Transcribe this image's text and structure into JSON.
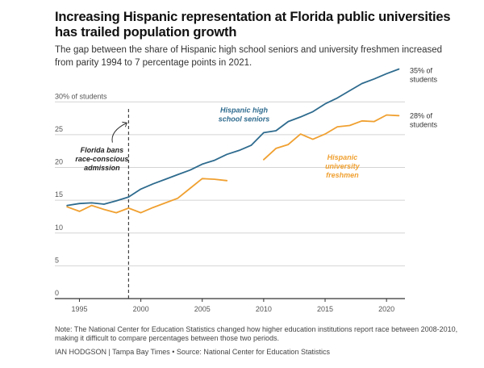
{
  "header": {
    "title": "Increasing Hispanic representation at Florida public universities has trailed population growth",
    "subtitle": "The gap between the share of Hispanic high school seniors and university freshmen increased from parity 1994 to 7 percentage points in 2021."
  },
  "footer": {
    "note": "Note: The National Center for Education Statistics changed how higher education institutions report race between 2008-2010, making it difficult to compare percentages between those two periods.",
    "credit": "IAN HODGSON | Tampa Bay Times • Source: National Center for Education Statistics"
  },
  "colors": {
    "seniors": "#2e6b8e",
    "freshmen": "#f0a030",
    "grid": "#d4d4d4",
    "axis": "#333333",
    "annotation": "#333333"
  },
  "chart_data": {
    "type": "line",
    "title": "Increasing Hispanic representation at Florida public universities has trailed population growth",
    "xlabel": "",
    "ylabel": "30% of students",
    "xlim": [
      1993,
      2021.5
    ],
    "ylim": [
      0,
      32
    ],
    "y_ticks": [
      0,
      5,
      10,
      15,
      20,
      25,
      30
    ],
    "y_tick_labels": [
      "0",
      "5",
      "10",
      "15",
      "20",
      "25",
      "30% of students"
    ],
    "x_ticks": [
      1995,
      2000,
      2005,
      2010,
      2015,
      2020
    ],
    "x_tick_labels": [
      "1995",
      "2000",
      "2005",
      "2010",
      "2015",
      "2020"
    ],
    "grid": true,
    "series": [
      {
        "key": "seniors",
        "name": "Hispanic high school seniors",
        "label_lines": [
          "Hispanic high",
          "school seniors"
        ],
        "end_label_lines": [
          "35% of",
          "students"
        ],
        "segments": [
          {
            "x": [
              1994,
              1995,
              1996,
              1997,
              1998,
              1999,
              2000,
              2001,
              2002,
              2003,
              2004,
              2005,
              2006,
              2007,
              2008,
              2009,
              2010,
              2011,
              2012,
              2013,
              2014,
              2015,
              2016,
              2017,
              2018,
              2019,
              2020,
              2021
            ],
            "y": [
              14.2,
              14.5,
              14.6,
              14.4,
              14.9,
              15.5,
              16.7,
              17.5,
              18.2,
              18.9,
              19.6,
              20.5,
              21.1,
              22.0,
              22.6,
              23.4,
              25.3,
              25.6,
              27.0,
              27.7,
              28.5,
              29.7,
              30.6,
              31.7,
              32.8,
              33.5,
              34.3,
              35.0
            ]
          }
        ]
      },
      {
        "key": "freshmen",
        "name": "Hispanic university freshmen",
        "label_lines": [
          "Hispanic",
          "university",
          "freshmen"
        ],
        "end_label_lines": [
          "28% of",
          "students"
        ],
        "segments": [
          {
            "x": [
              1994,
              1995,
              1996,
              1997,
              1998,
              1999,
              2000,
              2001,
              2002,
              2003,
              2004,
              2005,
              2006,
              2007
            ],
            "y": [
              14.0,
              13.3,
              14.2,
              13.6,
              13.1,
              13.8,
              13.1,
              13.9,
              14.6,
              15.3,
              16.8,
              18.3,
              18.2,
              18.0
            ]
          },
          {
            "x": [
              2010,
              2011,
              2012,
              2013,
              2014,
              2015,
              2016,
              2017,
              2018,
              2019,
              2020,
              2021
            ],
            "y": [
              21.2,
              22.9,
              23.5,
              25.1,
              24.3,
              25.1,
              26.2,
              26.4,
              27.1,
              27.0,
              28.0,
              27.9
            ]
          }
        ]
      }
    ],
    "annotations": [
      {
        "x": 1999,
        "kind": "vline",
        "text_lines": [
          "Florida bans",
          "race-conscious",
          "admission"
        ]
      }
    ]
  }
}
